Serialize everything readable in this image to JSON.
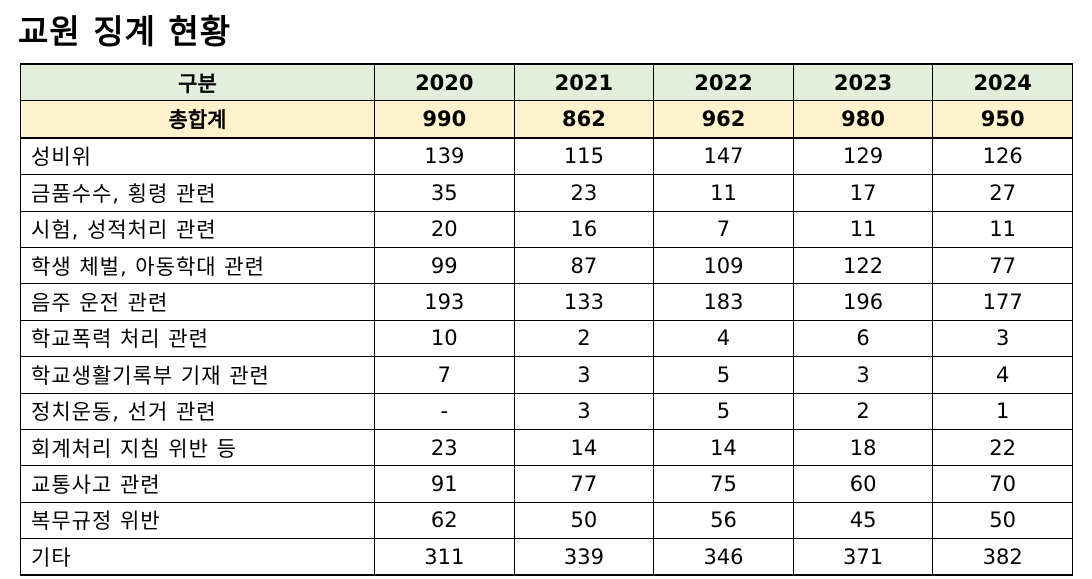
{
  "chart_data": {
    "type": "table",
    "title": "교원 징계 현황",
    "header_label": "구분",
    "years": [
      "2020",
      "2021",
      "2022",
      "2023",
      "2024"
    ],
    "total": {
      "label": "총합계",
      "values": [
        "990",
        "862",
        "962",
        "980",
        "950"
      ]
    },
    "rows": [
      {
        "label": "성비위",
        "values": [
          "139",
          "115",
          "147",
          "129",
          "126"
        ]
      },
      {
        "label": "금품수수, 횡령 관련",
        "values": [
          "35",
          "23",
          "11",
          "17",
          "27"
        ]
      },
      {
        "label": "시험, 성적처리 관련",
        "values": [
          "20",
          "16",
          "7",
          "11",
          "11"
        ]
      },
      {
        "label": "학생 체벌, 아동학대 관련",
        "values": [
          "99",
          "87",
          "109",
          "122",
          "77"
        ]
      },
      {
        "label": "음주 운전 관련",
        "values": [
          "193",
          "133",
          "183",
          "196",
          "177"
        ]
      },
      {
        "label": "학교폭력 처리 관련",
        "values": [
          "10",
          "2",
          "4",
          "6",
          "3"
        ]
      },
      {
        "label": "학교생활기록부 기재 관련",
        "values": [
          "7",
          "3",
          "5",
          "3",
          "4"
        ]
      },
      {
        "label": "정치운동, 선거 관련",
        "values": [
          "-",
          "3",
          "5",
          "2",
          "1"
        ]
      },
      {
        "label": "회계처리 지침 위반 등",
        "values": [
          "23",
          "14",
          "14",
          "18",
          "22"
        ]
      },
      {
        "label": "교통사고 관련",
        "values": [
          "91",
          "77",
          "75",
          "60",
          "70"
        ]
      },
      {
        "label": "복무규정 위반",
        "values": [
          "62",
          "50",
          "56",
          "45",
          "50"
        ]
      },
      {
        "label": "기타",
        "values": [
          "311",
          "339",
          "346",
          "371",
          "382"
        ]
      }
    ],
    "colors": {
      "header_background": "#e2efda",
      "total_background": "#fff2cc"
    }
  }
}
